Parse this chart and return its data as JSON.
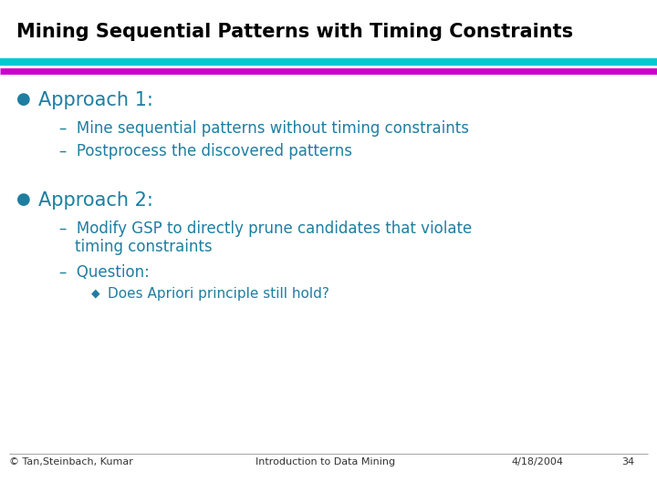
{
  "title": "Mining Sequential Patterns with Timing Constraints",
  "title_fontsize": 15,
  "title_color": "#000000",
  "bg_color": "#ffffff",
  "header_line1_color": "#00C8D2",
  "header_line2_color": "#CC00CC",
  "bullet_color": "#1E7EA1",
  "text_color": "#1E7EA1",
  "dash_color": "#1E7EA1",
  "diamond_color": "#1E7EA1",
  "approach1_header": "Approach 1:",
  "approach1_sub1": "Mine sequential patterns without timing constraints",
  "approach1_sub2": "Postprocess the discovered patterns",
  "approach2_header": "Approach 2:",
  "approach2_sub1_line1": "Modify GSP to directly prune candidates that violate",
  "approach2_sub1_line2": "timing constraints",
  "approach2_sub2": "Question:",
  "approach2_sub2_sub1": "Does Apriori principle still hold?",
  "footer_left": "© Tan,Steinbach, Kumar",
  "footer_center": "Introduction to Data Mining",
  "footer_right": "4/18/2004",
  "footer_page": "34",
  "footer_fontsize": 8,
  "header_fontsize": 15,
  "sub_fontsize": 12,
  "subsub_fontsize": 11
}
